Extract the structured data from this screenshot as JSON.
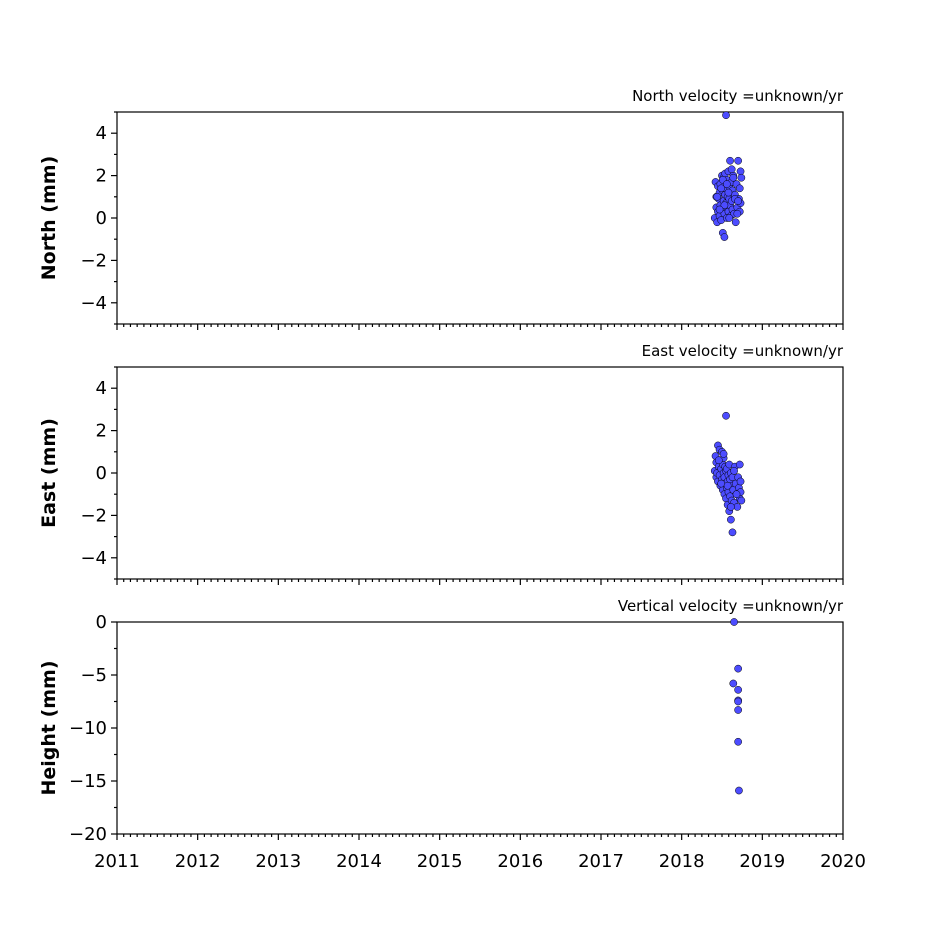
{
  "chart_data": [
    {
      "type": "scatter",
      "title": "North velocity =unknown/yr",
      "ylabel": "North (mm)",
      "xlim": [
        2011,
        2020
      ],
      "ylim": [
        -5,
        5
      ],
      "yticks": [
        -4,
        -2,
        0,
        2,
        4
      ],
      "yticklabels": [
        "−4",
        "−2",
        "0",
        "2",
        "4"
      ],
      "xticks": [
        2011,
        2012,
        2013,
        2014,
        2015,
        2016,
        2017,
        2018,
        2019,
        2020
      ],
      "xticklabels": [],
      "point_color": "#4c4cff",
      "x": [
        2018.41,
        2018.42,
        2018.43,
        2018.43,
        2018.44,
        2018.45,
        2018.45,
        2018.46,
        2018.47,
        2018.47,
        2018.48,
        2018.48,
        2018.49,
        2018.5,
        2018.5,
        2018.51,
        2018.51,
        2018.52,
        2018.52,
        2018.53,
        2018.53,
        2018.54,
        2018.54,
        2018.55,
        2018.55,
        2018.56,
        2018.56,
        2018.57,
        2018.57,
        2018.58,
        2018.58,
        2018.59,
        2018.59,
        2018.6,
        2018.6,
        2018.61,
        2018.61,
        2018.62,
        2018.62,
        2018.63,
        2018.63,
        2018.64,
        2018.65,
        2018.66,
        2018.67,
        2018.68,
        2018.69,
        2018.7,
        2018.71,
        2018.72,
        2018.72,
        2018.73,
        2018.73,
        2018.74,
        2018.51,
        2018.53,
        2018.58,
        2018.62,
        2018.66,
        2018.69,
        2018.44,
        2018.47,
        2018.49,
        2018.56,
        2018.59,
        2018.64,
        2018.7,
        2018.55
      ],
      "y": [
        0.0,
        1.7,
        0.5,
        1.0,
        -0.2,
        1.5,
        0.3,
        0.9,
        1.2,
        0.1,
        1.6,
        0.6,
        -0.1,
        2.0,
        0.4,
        1.3,
        -0.7,
        0.8,
        1.9,
        -0.9,
        0.2,
        1.1,
        2.1,
        0.7,
        1.4,
        0.0,
        1.8,
        0.5,
        1.0,
        2.2,
        0.3,
        0.9,
        1.5,
        2.7,
        0.6,
        1.2,
        0.1,
        1.7,
        0.8,
        0.4,
        1.3,
        2.0,
        0.2,
        1.1,
        -0.2,
        1.6,
        0.5,
        2.7,
        0.9,
        1.4,
        0.3,
        2.2,
        0.7,
        1.9,
        1.8,
        0.6,
        1.2,
        2.3,
        0.9,
        0.2,
        1.0,
        0.4,
        1.4,
        1.6,
        0.0,
        1.9,
        0.8,
        4.85
      ]
    },
    {
      "type": "scatter",
      "title": "East velocity =unknown/yr",
      "ylabel": "East (mm)",
      "xlim": [
        2011,
        2020
      ],
      "ylim": [
        -5,
        5
      ],
      "yticks": [
        -4,
        -2,
        0,
        2,
        4
      ],
      "yticklabels": [
        "−4",
        "−2",
        "0",
        "2",
        "4"
      ],
      "xticks": [
        2011,
        2012,
        2013,
        2014,
        2015,
        2016,
        2017,
        2018,
        2019,
        2020
      ],
      "xticklabels": [],
      "point_color": "#4c4cff",
      "x": [
        2018.41,
        2018.42,
        2018.43,
        2018.43,
        2018.44,
        2018.45,
        2018.45,
        2018.46,
        2018.47,
        2018.47,
        2018.48,
        2018.48,
        2018.49,
        2018.5,
        2018.5,
        2018.51,
        2018.51,
        2018.52,
        2018.52,
        2018.53,
        2018.53,
        2018.54,
        2018.54,
        2018.55,
        2018.55,
        2018.56,
        2018.56,
        2018.57,
        2018.57,
        2018.58,
        2018.58,
        2018.59,
        2018.59,
        2018.6,
        2018.6,
        2018.61,
        2018.61,
        2018.62,
        2018.62,
        2018.63,
        2018.63,
        2018.64,
        2018.65,
        2018.66,
        2018.67,
        2018.68,
        2018.69,
        2018.7,
        2018.71,
        2018.72,
        2018.72,
        2018.73,
        2018.73,
        2018.74,
        2018.46,
        2018.49,
        2018.52,
        2018.57,
        2018.61,
        2018.65,
        2018.68,
        2018.55
      ],
      "y": [
        0.1,
        0.8,
        -0.2,
        0.5,
        0.0,
        1.3,
        -0.4,
        0.3,
        1.1,
        -0.1,
        0.6,
        -0.6,
        0.2,
        1.0,
        -0.3,
        0.4,
        -0.8,
        0.0,
        0.7,
        -1.0,
        -0.2,
        0.3,
        -0.5,
        0.1,
        -1.2,
        -0.7,
        0.2,
        -0.4,
        -1.5,
        -0.1,
        -0.9,
        0.4,
        -1.8,
        -0.3,
        -1.1,
        0.0,
        -2.2,
        -0.6,
        -1.3,
        -2.8,
        -0.2,
        -0.8,
        -1.4,
        0.3,
        -0.5,
        -1.0,
        -1.6,
        -0.2,
        -0.7,
        -1.2,
        0.4,
        -0.4,
        -0.9,
        -1.3,
        0.6,
        -0.5,
        0.9,
        -0.6,
        -1.6,
        0.1,
        -1.0,
        2.7
      ]
    },
    {
      "type": "scatter",
      "title": "Vertical velocity =unknown/yr",
      "ylabel": "Height (mm)",
      "xlim": [
        2011,
        2020
      ],
      "ylim": [
        -20,
        0
      ],
      "yticks": [
        -20,
        -15,
        -10,
        -5,
        0
      ],
      "yticklabels": [
        "−20",
        "−15",
        "−10",
        "−5",
        "0"
      ],
      "xticks": [
        2011,
        2012,
        2013,
        2014,
        2015,
        2016,
        2017,
        2018,
        2019,
        2020
      ],
      "xticklabels": [
        "2011",
        "2012",
        "2013",
        "2014",
        "2015",
        "2016",
        "2017",
        "2018",
        "2019",
        "2020"
      ],
      "point_color": "#4c4cff",
      "x": [
        2018.65,
        2018.64,
        2018.7,
        2018.7,
        2018.7,
        2018.7,
        2018.7,
        2018.7,
        2018.71
      ],
      "y": [
        0.0,
        -5.8,
        -4.4,
        -6.4,
        -7.4,
        -7.5,
        -8.3,
        -11.3,
        -15.9
      ]
    }
  ]
}
